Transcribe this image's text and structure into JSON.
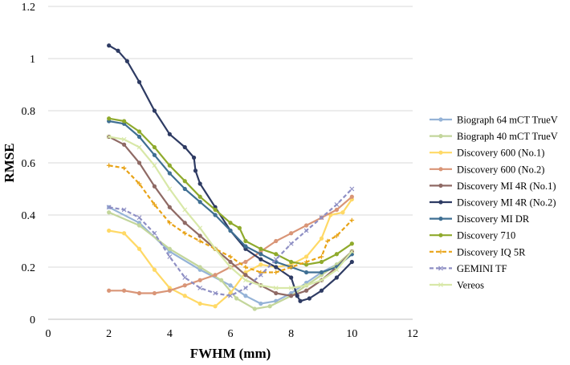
{
  "chart_data": {
    "type": "line",
    "title": "",
    "xlabel": "FWHM (mm)",
    "ylabel": "RMSE",
    "xlim": [
      0,
      12
    ],
    "ylim": [
      0,
      1.2
    ],
    "xticks": [
      "0",
      "2",
      "4",
      "6",
      "8",
      "10",
      "12"
    ],
    "yticks": [
      "0",
      "0.2",
      "0.4",
      "0.6",
      "0.8",
      "1",
      "1.2"
    ],
    "grid": "horizontal",
    "legend_position": "right",
    "series": [
      {
        "name": "Biograph 64 mCT TrueV",
        "color": "#95b3d7",
        "marker": "circle",
        "dash": false,
        "points": [
          [
            2,
            0.43
          ],
          [
            3,
            0.37
          ],
          [
            4,
            0.26
          ],
          [
            5,
            0.19
          ],
          [
            6,
            0.13
          ],
          [
            6.5,
            0.09
          ],
          [
            7,
            0.06
          ],
          [
            7.5,
            0.07
          ],
          [
            8,
            0.1
          ],
          [
            8.5,
            0.14
          ],
          [
            9,
            0.18
          ],
          [
            9.5,
            0.21
          ],
          [
            10,
            0.25
          ]
        ]
      },
      {
        "name": "Biograph 40 mCT TrueV",
        "color": "#c3d69b",
        "marker": "circle",
        "dash": false,
        "points": [
          [
            2,
            0.41
          ],
          [
            3,
            0.36
          ],
          [
            4,
            0.27
          ],
          [
            5,
            0.2
          ],
          [
            5.7,
            0.15
          ],
          [
            6.2,
            0.08
          ],
          [
            6.8,
            0.04
          ],
          [
            7.3,
            0.05
          ],
          [
            8,
            0.09
          ],
          [
            8.5,
            0.13
          ],
          [
            9,
            0.17
          ],
          [
            9.5,
            0.21
          ],
          [
            10,
            0.26
          ]
        ]
      },
      {
        "name": "Discovery 600 (No.1)",
        "color": "#ffd966",
        "marker": "circle",
        "dash": false,
        "points": [
          [
            2,
            0.34
          ],
          [
            2.5,
            0.33
          ],
          [
            3,
            0.27
          ],
          [
            3.5,
            0.19
          ],
          [
            4,
            0.12
          ],
          [
            4.5,
            0.09
          ],
          [
            5,
            0.06
          ],
          [
            5.5,
            0.05
          ],
          [
            6,
            0.1
          ],
          [
            6.5,
            0.18
          ],
          [
            7,
            0.21
          ],
          [
            7.5,
            0.2
          ],
          [
            8,
            0.21
          ],
          [
            8.5,
            0.24
          ],
          [
            9,
            0.31
          ],
          [
            9.3,
            0.4
          ],
          [
            9.7,
            0.41
          ],
          [
            10,
            0.46
          ]
        ]
      },
      {
        "name": "Discovery 600 (No.2)",
        "color": "#d99577",
        "marker": "circle",
        "dash": false,
        "points": [
          [
            2,
            0.11
          ],
          [
            2.5,
            0.11
          ],
          [
            3,
            0.1
          ],
          [
            3.5,
            0.1
          ],
          [
            4,
            0.11
          ],
          [
            4.5,
            0.13
          ],
          [
            5,
            0.15
          ],
          [
            5.5,
            0.17
          ],
          [
            6,
            0.2
          ],
          [
            6.5,
            0.22
          ],
          [
            7,
            0.26
          ],
          [
            7.5,
            0.3
          ],
          [
            8,
            0.33
          ],
          [
            8.5,
            0.36
          ],
          [
            9,
            0.39
          ],
          [
            9.5,
            0.42
          ],
          [
            10,
            0.47
          ]
        ]
      },
      {
        "name": "Discovery MI 4R (No.1)",
        "color": "#8f6a65",
        "marker": "circle",
        "dash": false,
        "points": [
          [
            2,
            0.7
          ],
          [
            2.5,
            0.67
          ],
          [
            3,
            0.6
          ],
          [
            3.5,
            0.51
          ],
          [
            4,
            0.43
          ],
          [
            4.5,
            0.37
          ],
          [
            5,
            0.32
          ],
          [
            5.5,
            0.27
          ],
          [
            6,
            0.22
          ],
          [
            6.5,
            0.17
          ],
          [
            7,
            0.13
          ],
          [
            7.5,
            0.1
          ],
          [
            8,
            0.09
          ],
          [
            8.5,
            0.11
          ],
          [
            9,
            0.15
          ],
          [
            9.5,
            0.2
          ],
          [
            10,
            0.26
          ]
        ]
      },
      {
        "name": "Discovery MI 4R (No.2)",
        "color": "#2e3b63",
        "marker": "circle",
        "dash": false,
        "points": [
          [
            2,
            1.05
          ],
          [
            2.3,
            1.03
          ],
          [
            2.6,
            0.99
          ],
          [
            3,
            0.91
          ],
          [
            3.5,
            0.8
          ],
          [
            4,
            0.71
          ],
          [
            4.5,
            0.66
          ],
          [
            4.8,
            0.62
          ],
          [
            4.85,
            0.57
          ],
          [
            5,
            0.52
          ],
          [
            5.5,
            0.43
          ],
          [
            6,
            0.34
          ],
          [
            6.5,
            0.27
          ],
          [
            7,
            0.23
          ],
          [
            7.5,
            0.2
          ],
          [
            8,
            0.16
          ],
          [
            8.2,
            0.09
          ],
          [
            8.3,
            0.07
          ],
          [
            8.6,
            0.08
          ],
          [
            9,
            0.11
          ],
          [
            9.5,
            0.16
          ],
          [
            10,
            0.22
          ]
        ]
      },
      {
        "name": "Discovery MI DR",
        "color": "#3f6f93",
        "marker": "circle",
        "dash": false,
        "points": [
          [
            2,
            0.76
          ],
          [
            2.5,
            0.75
          ],
          [
            3,
            0.7
          ],
          [
            3.5,
            0.63
          ],
          [
            4,
            0.56
          ],
          [
            4.5,
            0.5
          ],
          [
            5,
            0.45
          ],
          [
            5.5,
            0.4
          ],
          [
            6,
            0.34
          ],
          [
            6.5,
            0.28
          ],
          [
            7,
            0.25
          ],
          [
            7.5,
            0.22
          ],
          [
            8,
            0.2
          ],
          [
            8.5,
            0.18
          ],
          [
            9,
            0.18
          ],
          [
            9.5,
            0.2
          ],
          [
            10,
            0.25
          ]
        ]
      },
      {
        "name": "Discovery 710",
        "color": "#8faa2c",
        "marker": "circle",
        "dash": false,
        "points": [
          [
            2,
            0.77
          ],
          [
            2.5,
            0.76
          ],
          [
            3,
            0.72
          ],
          [
            3.5,
            0.66
          ],
          [
            4,
            0.59
          ],
          [
            4.5,
            0.53
          ],
          [
            5,
            0.47
          ],
          [
            5.5,
            0.42
          ],
          [
            6,
            0.37
          ],
          [
            6.3,
            0.35
          ],
          [
            6.5,
            0.3
          ],
          [
            7,
            0.27
          ],
          [
            7.5,
            0.25
          ],
          [
            8,
            0.22
          ],
          [
            8.5,
            0.21
          ],
          [
            9,
            0.22
          ],
          [
            9.5,
            0.25
          ],
          [
            10,
            0.29
          ]
        ]
      },
      {
        "name": "Discovery IQ 5R",
        "color": "#e8a317",
        "marker": "plus",
        "dash": true,
        "points": [
          [
            2,
            0.59
          ],
          [
            2.5,
            0.58
          ],
          [
            3,
            0.52
          ],
          [
            3.5,
            0.44
          ],
          [
            4,
            0.37
          ],
          [
            4.5,
            0.33
          ],
          [
            5,
            0.3
          ],
          [
            5.5,
            0.27
          ],
          [
            6,
            0.24
          ],
          [
            6.5,
            0.2
          ],
          [
            7,
            0.18
          ],
          [
            7.5,
            0.18
          ],
          [
            8,
            0.2
          ],
          [
            8.5,
            0.22
          ],
          [
            9,
            0.24
          ],
          [
            9.2,
            0.3
          ],
          [
            9.5,
            0.32
          ],
          [
            10,
            0.38
          ]
        ]
      },
      {
        "name": "GEMINI TF",
        "color": "#8e8fc4",
        "marker": "cross",
        "dash": true,
        "points": [
          [
            2,
            0.43
          ],
          [
            2.5,
            0.42
          ],
          [
            3,
            0.39
          ],
          [
            3.5,
            0.33
          ],
          [
            4,
            0.24
          ],
          [
            4.5,
            0.16
          ],
          [
            5,
            0.12
          ],
          [
            5.5,
            0.1
          ],
          [
            6,
            0.09
          ],
          [
            6.5,
            0.12
          ],
          [
            7,
            0.17
          ],
          [
            7.5,
            0.23
          ],
          [
            8,
            0.29
          ],
          [
            8.5,
            0.34
          ],
          [
            9,
            0.39
          ],
          [
            9.5,
            0.44
          ],
          [
            10,
            0.5
          ]
        ]
      },
      {
        "name": "Vereos",
        "color": "#d8e8a8",
        "marker": "cross",
        "dash": false,
        "points": [
          [
            2,
            0.7
          ],
          [
            2.5,
            0.69
          ],
          [
            3,
            0.66
          ],
          [
            3.5,
            0.59
          ],
          [
            4,
            0.5
          ],
          [
            4.5,
            0.42
          ],
          [
            5,
            0.35
          ],
          [
            5.5,
            0.27
          ],
          [
            6,
            0.2
          ],
          [
            6.5,
            0.15
          ],
          [
            7,
            0.13
          ],
          [
            7.5,
            0.12
          ],
          [
            8,
            0.12
          ],
          [
            8.5,
            0.13
          ],
          [
            9,
            0.15
          ],
          [
            9.5,
            0.19
          ],
          [
            10,
            0.26
          ]
        ]
      }
    ]
  }
}
